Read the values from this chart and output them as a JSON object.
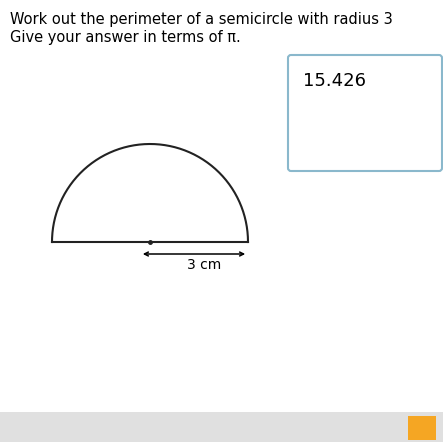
{
  "title_line1": "Work out the perimeter of a semicircle with radius 3",
  "title_line2": "Give your answer in terms of π.",
  "answer": "15.426",
  "dimension_label": "3 cm",
  "bg_color": "#ffffff",
  "semicircle_color": "#222222",
  "answer_box_border": "#8ab8cc",
  "answer_box_bg": "#ffffff",
  "answer_text_color": "#000000",
  "title_fontsize": 10.5,
  "answer_fontsize": 13,
  "dim_fontsize": 10,
  "footer_color": "#e0e0e0",
  "orange_color": "#f5a623"
}
